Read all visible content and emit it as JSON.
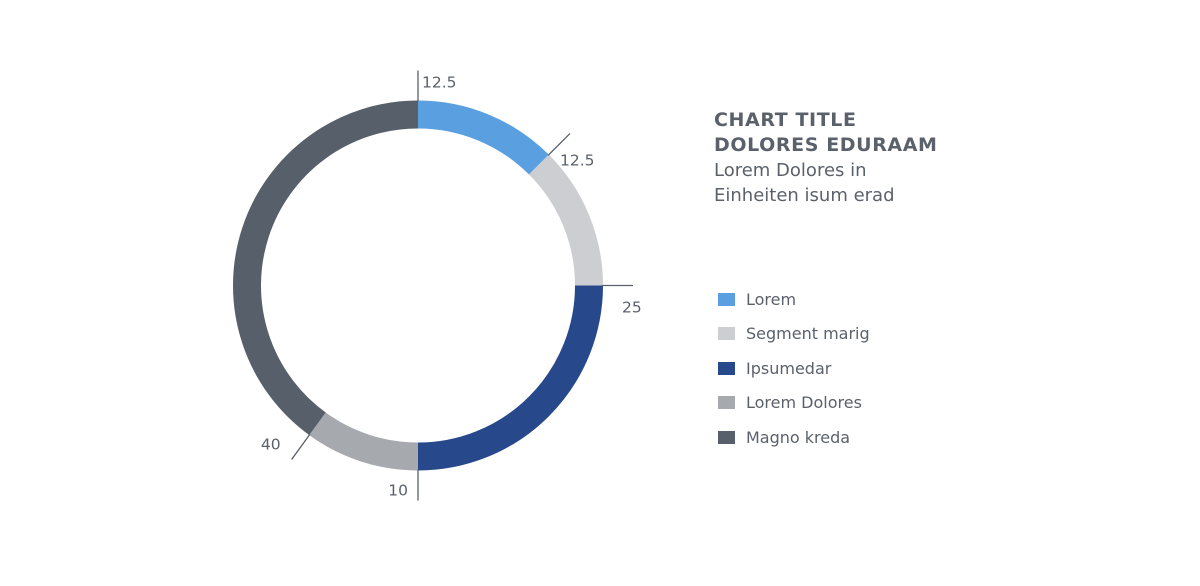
{
  "chart_data": {
    "type": "pie",
    "variant": "donut",
    "title_lines": [
      "CHART TITLE",
      "DOLORES EDURAAM"
    ],
    "subtitle_lines": [
      "Lorem Dolores in",
      "Einheiten isum erad"
    ],
    "legend_position": "right",
    "slices": [
      {
        "label": "Lorem",
        "value": 12.5,
        "value_label": "12.5",
        "color": "#5a9fe0"
      },
      {
        "label": "Segment marig",
        "value": 12.5,
        "value_label": "12.5",
        "color": "#ccced1"
      },
      {
        "label": "Ipsumedar",
        "value": 25,
        "value_label": "25",
        "color": "#28488c"
      },
      {
        "label": "Lorem Dolores",
        "value": 10,
        "value_label": "10",
        "color": "#a6a9ae"
      },
      {
        "label": "Magno kreda",
        "value": 40,
        "value_label": "40",
        "color": "#575f6b"
      }
    ]
  }
}
